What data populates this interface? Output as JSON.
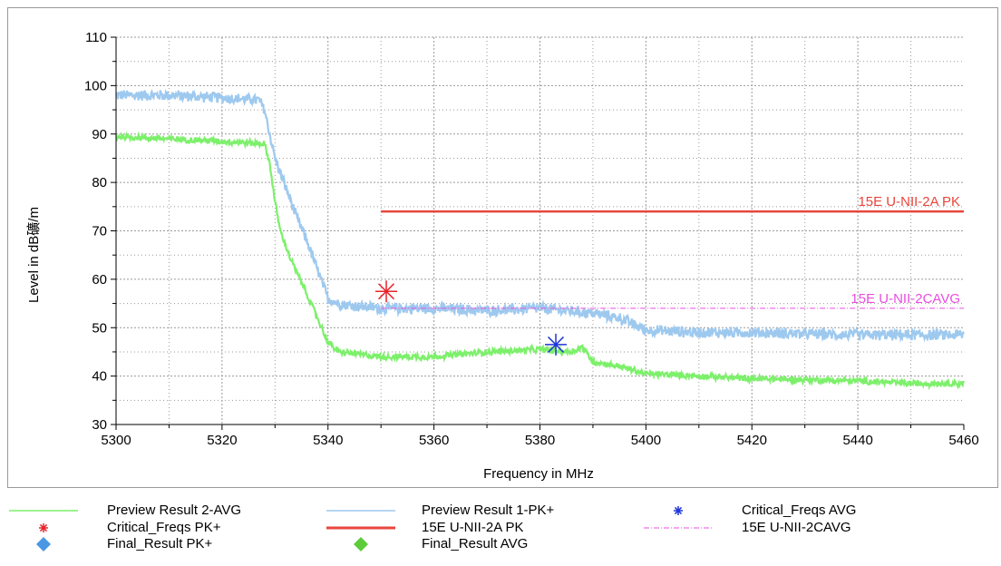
{
  "chart_data": {
    "type": "line",
    "title": "",
    "xlabel": "Frequency in MHz",
    "ylabel": "Level in dB礦/m",
    "xlim": [
      5300,
      5460
    ],
    "ylim": [
      30,
      110
    ],
    "x_ticks": [
      "5300",
      "5320",
      "5340",
      "5360",
      "5380",
      "5400",
      "5420",
      "5440",
      "5460"
    ],
    "y_ticks": [
      "30",
      "40",
      "50",
      "60",
      "70",
      "80",
      "90",
      "100",
      "110"
    ],
    "grid": true,
    "legend_placement": "bottom",
    "series": [
      {
        "name": "Preview Result 1-PK+",
        "color": "#9ec9ef",
        "points": [
          [
            5300,
            98
          ],
          [
            5310,
            98
          ],
          [
            5320,
            97.5
          ],
          [
            5327,
            97
          ],
          [
            5328,
            95
          ],
          [
            5329,
            90
          ],
          [
            5330,
            85
          ],
          [
            5332,
            79
          ],
          [
            5334,
            73
          ],
          [
            5336,
            68
          ],
          [
            5338,
            62
          ],
          [
            5340,
            56
          ],
          [
            5342,
            55
          ],
          [
            5345,
            54.5
          ],
          [
            5350,
            54
          ],
          [
            5360,
            54
          ],
          [
            5370,
            53.5
          ],
          [
            5380,
            54
          ],
          [
            5390,
            53
          ],
          [
            5395,
            52
          ],
          [
            5400,
            49.5
          ],
          [
            5410,
            49
          ],
          [
            5420,
            49
          ],
          [
            5440,
            48.5
          ],
          [
            5460,
            48.5
          ]
        ],
        "noise": 0.8
      },
      {
        "name": "Preview Result 2-AVG",
        "color": "#7df06b",
        "points": [
          [
            5300,
            89.5
          ],
          [
            5310,
            89
          ],
          [
            5320,
            88.5
          ],
          [
            5328,
            88
          ],
          [
            5329,
            84
          ],
          [
            5330,
            76
          ],
          [
            5331,
            70
          ],
          [
            5333,
            64
          ],
          [
            5336,
            57
          ],
          [
            5338,
            52
          ],
          [
            5340,
            47
          ],
          [
            5342,
            45
          ],
          [
            5350,
            44
          ],
          [
            5360,
            44
          ],
          [
            5370,
            45
          ],
          [
            5380,
            45.5
          ],
          [
            5386,
            45
          ],
          [
            5388,
            46
          ],
          [
            5390,
            43
          ],
          [
            5395,
            42
          ],
          [
            5400,
            40.5
          ],
          [
            5420,
            39.5
          ],
          [
            5440,
            39
          ],
          [
            5450,
            38.5
          ],
          [
            5460,
            38.5
          ]
        ],
        "noise": 0.45
      }
    ],
    "limits": [
      {
        "name": "15E U-NII-2A PK",
        "label": "15E U-NII-2A PK",
        "color": "#e8453c",
        "x_start": 5350,
        "x_end": 5460,
        "y": 74
      },
      {
        "name": "15E U-NII-2CAVG",
        "label": "15E U-NII-2CAVG",
        "color": "#e94de0",
        "x_start": 5350,
        "x_end": 5460,
        "y": 54
      }
    ],
    "critical_freqs": [
      {
        "name": "Critical_Freqs PK+",
        "color": "#e8232a",
        "x": 5351,
        "y": 57.5
      },
      {
        "name": "Critical_Freqs AVG",
        "color": "#1e34d6",
        "x": 5383,
        "y": 46.5
      }
    ]
  },
  "legend": {
    "items": [
      {
        "label": "Preview Result 2-AVG",
        "marker": "line",
        "color": "#7df06b"
      },
      {
        "label": "Preview Result 1-PK+",
        "marker": "line",
        "color": "#9ec9ef"
      },
      {
        "label": "Critical_Freqs AVG",
        "marker": "star",
        "color": "#1e34d6"
      },
      {
        "label": "Critical_Freqs PK+",
        "marker": "star",
        "color": "#e8232a"
      },
      {
        "label": "15E U-NII-2A PK",
        "marker": "thick-line",
        "color": "#e8453c"
      },
      {
        "label": "15E U-NII-2CAVG",
        "marker": "dashdot-line",
        "color": "#e94de0"
      },
      {
        "label": "Final_Result PK+",
        "marker": "diamond",
        "color": "#4a97e3"
      },
      {
        "label": "Final_Result AVG",
        "marker": "diamond",
        "color": "#5ccc3b"
      }
    ]
  }
}
